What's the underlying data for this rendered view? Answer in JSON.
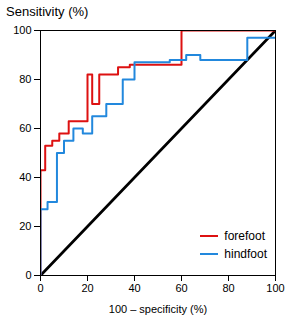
{
  "chart_data": {
    "type": "line",
    "title": "Sensitivity (%)",
    "xlabel": "100 – specificity (%)",
    "xlim": [
      0,
      100
    ],
    "ylim": [
      0,
      100
    ],
    "xticks": [
      0,
      20,
      40,
      60,
      80,
      100
    ],
    "yticks": [
      0,
      20,
      40,
      60,
      80,
      100
    ],
    "grid": false,
    "legend": "lower right",
    "reference_line": {
      "x": [
        0,
        100
      ],
      "values": [
        0,
        100
      ],
      "color": "#000000"
    },
    "series": [
      {
        "name": "forefoot",
        "color": "#dd1111",
        "x": [
          0,
          0,
          2,
          2,
          5,
          5,
          8,
          8,
          12,
          12,
          20,
          20,
          22,
          22,
          25,
          25,
          33,
          33,
          38,
          38,
          60,
          60,
          65,
          65,
          100
        ],
        "values": [
          0,
          43,
          43,
          53,
          53,
          55,
          55,
          58,
          58,
          63,
          63,
          82,
          82,
          70,
          70,
          82,
          82,
          85,
          85,
          86,
          86,
          100,
          100,
          100,
          100
        ]
      },
      {
        "name": "hindfoot",
        "color": "#2288dd",
        "x": [
          0,
          0,
          3,
          3,
          7,
          7,
          10,
          10,
          14,
          14,
          18,
          18,
          22,
          22,
          28,
          28,
          35,
          35,
          40,
          40,
          55,
          55,
          62,
          62,
          68,
          68,
          88,
          88,
          100
        ],
        "values": [
          0,
          27,
          27,
          30,
          30,
          50,
          50,
          55,
          55,
          60,
          60,
          58,
          58,
          65,
          65,
          70,
          70,
          80,
          80,
          87,
          87,
          88,
          88,
          90,
          90,
          88,
          88,
          97,
          97
        ]
      }
    ]
  }
}
